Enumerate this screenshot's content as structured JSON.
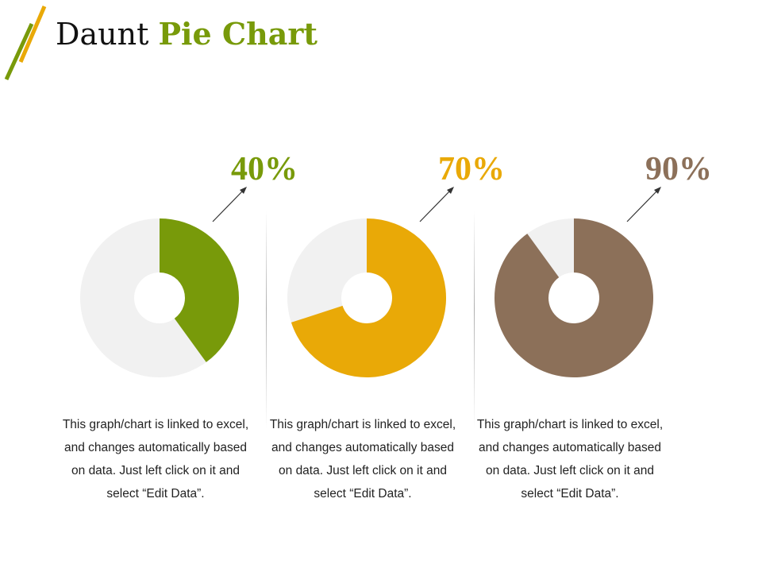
{
  "header": {
    "title_plain": "Daunt",
    "title_accent": "Pie Chart"
  },
  "colors": {
    "green": "#789a0a",
    "yellow": "#e9a907",
    "brown": "#8c7059",
    "track": "#f1f1f1",
    "title_accent": "#789a0a",
    "logo_green": "#789a0a",
    "logo_yellow": "#e9a907"
  },
  "chart_data": [
    {
      "type": "pie",
      "value_pct": 40,
      "label": "40%",
      "color": "#789a0a",
      "caption": "This graph/chart is linked to excel, and changes automatically based on data. Just left click on it and select “Edit Data”."
    },
    {
      "type": "pie",
      "value_pct": 70,
      "label": "70%",
      "color": "#e9a907",
      "caption": "This graph/chart is linked to excel, and changes automatically based on data. Just left click on it and select “Edit Data”."
    },
    {
      "type": "pie",
      "value_pct": 90,
      "label": "90%",
      "color": "#8c7059",
      "caption": "This graph/chart is linked to excel, and changes automatically based on data. Just left click on it and select “Edit Data”."
    }
  ]
}
